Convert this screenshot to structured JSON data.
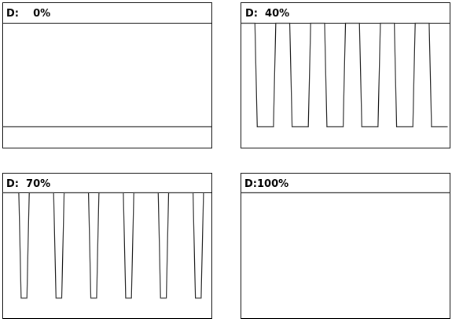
{
  "colors": {
    "frame": "#000000",
    "trace": "#2b2b2b",
    "background": "#ffffff"
  },
  "chart_data": [
    {
      "type": "line",
      "label": "D:    0%",
      "duty_cycle_percent": 0,
      "visible_cycles": 0,
      "levels": [
        "low",
        "high"
      ],
      "signal": "constant low"
    },
    {
      "type": "line",
      "label": "D:  40%",
      "duty_cycle_percent": 40,
      "visible_cycles": 6,
      "levels": [
        "low",
        "high"
      ],
      "signal": "square wave"
    },
    {
      "type": "line",
      "label": "D:  70%",
      "duty_cycle_percent": 70,
      "visible_cycles": 6,
      "levels": [
        "low",
        "high"
      ],
      "signal": "square wave"
    },
    {
      "type": "line",
      "label": "D:100%",
      "duty_cycle_percent": 100,
      "visible_cycles": 0,
      "levels": [
        "low",
        "high"
      ],
      "signal": "constant high"
    }
  ]
}
